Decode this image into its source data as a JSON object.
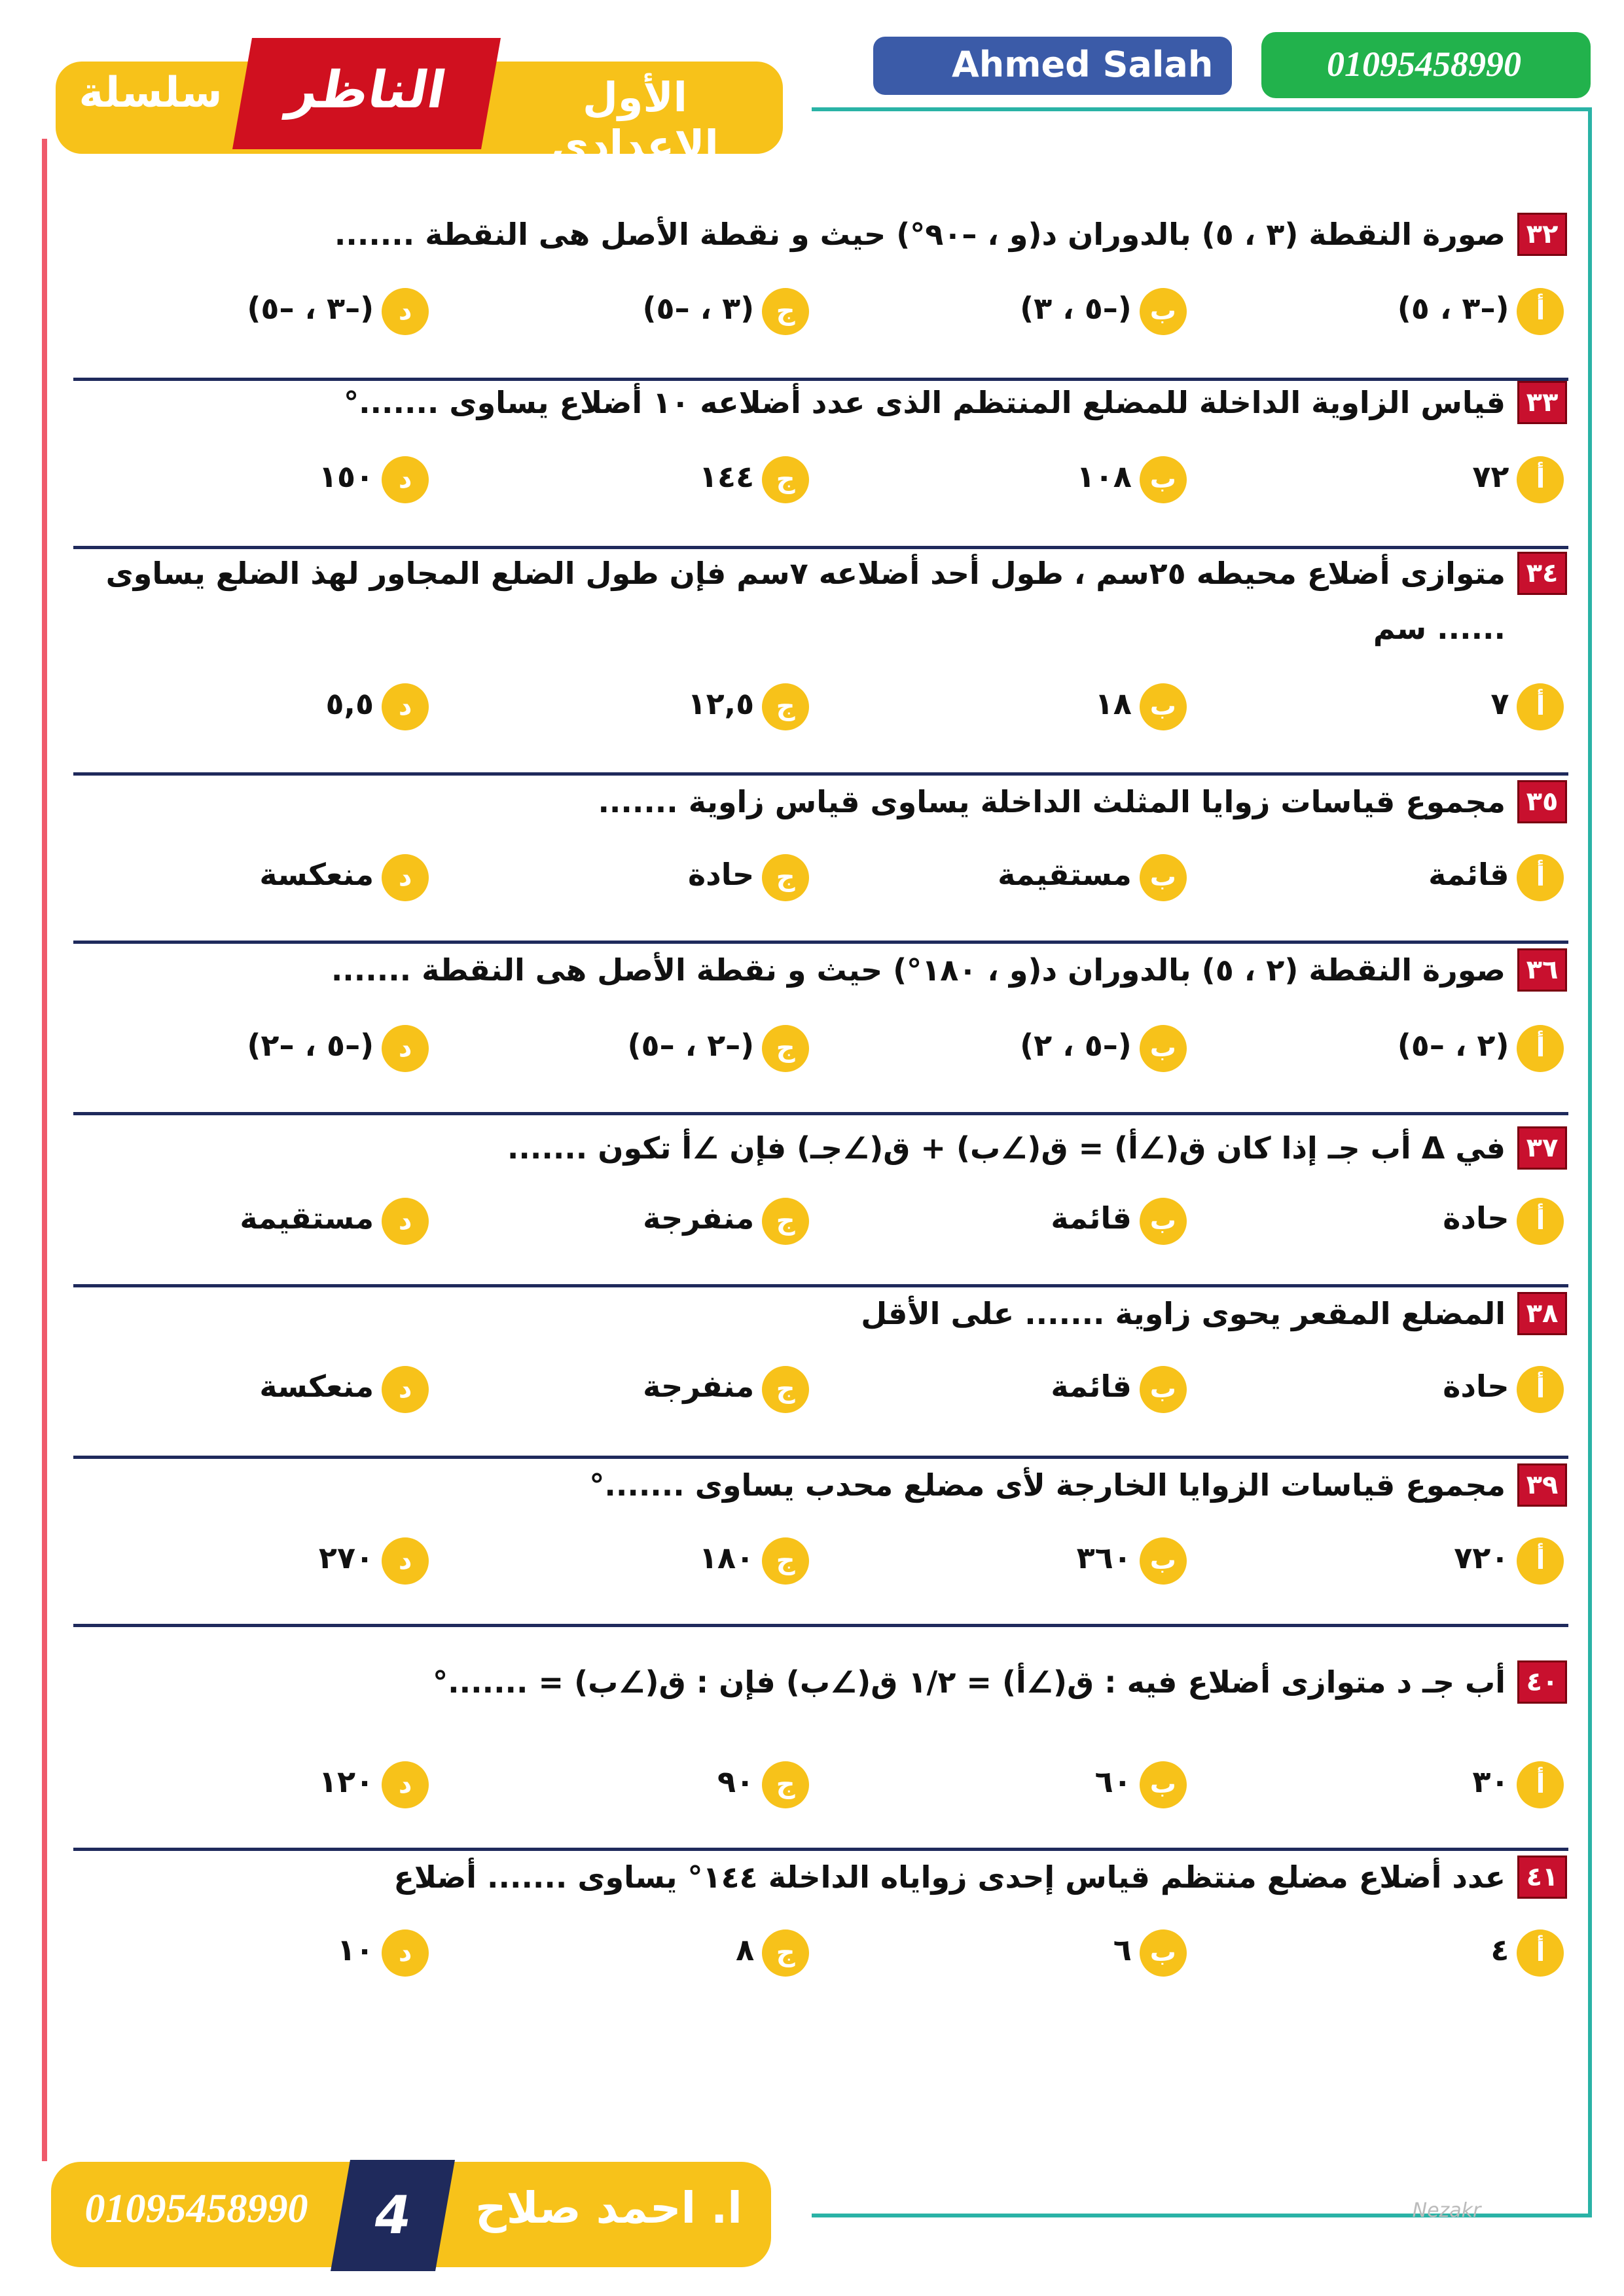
{
  "header": {
    "series_label": "سلسلة",
    "brand": "الناظر",
    "grade": "الأول الإعدادى",
    "facebook": "Ahmed Salah",
    "whatsapp": "01095458990"
  },
  "questions": [
    {
      "number": "٣٢",
      "text": "صورة النقطة (٣ ، ٥) بالدوران  د(و ، –٩٠°) حيث و نقطة الأصل هى النقطة .......",
      "options": [
        {
          "letter": "أ",
          "text": "(–٣ ، ٥)"
        },
        {
          "letter": "ب",
          "text": "(–٥ ، ٣)"
        },
        {
          "letter": "ج",
          "text": "(٣ ، –٥)"
        },
        {
          "letter": "د",
          "text": "(–٣ ، –٥)"
        }
      ]
    },
    {
      "number": "٣٣",
      "text": "قياس الزاوية الداخلة للمضلع المنتظم الذى عدد أضلاعه ١٠ أضلاع يساوى .......°",
      "options": [
        {
          "letter": "أ",
          "text": "٧٢"
        },
        {
          "letter": "ب",
          "text": "١٠٨"
        },
        {
          "letter": "ج",
          "text": "١٤٤"
        },
        {
          "letter": "د",
          "text": "١٥٠"
        }
      ]
    },
    {
      "number": "٣٤",
      "text": "متوازى أضلاع محيطه ٢٥سم ، طول أحد أضلاعه ٧سم فإن طول الضلع المجاور لهذ الضلع يساوى ...... سم",
      "options": [
        {
          "letter": "أ",
          "text": "٧"
        },
        {
          "letter": "ب",
          "text": "١٨"
        },
        {
          "letter": "ج",
          "text": "١٢,٥"
        },
        {
          "letter": "د",
          "text": "٥,٥"
        }
      ]
    },
    {
      "number": "٣٥",
      "text": "مجموع قياسات زوايا المثلث الداخلة يساوى قياس زاوية .......",
      "options": [
        {
          "letter": "أ",
          "text": "قائمة"
        },
        {
          "letter": "ب",
          "text": "مستقيمة"
        },
        {
          "letter": "ج",
          "text": "حادة"
        },
        {
          "letter": "د",
          "text": "منعكسة"
        }
      ]
    },
    {
      "number": "٣٦",
      "text": "صورة النقطة (٢ ، ٥) بالدوران  د(و ، ١٨٠°) حيث و نقطة الأصل هى النقطة .......",
      "options": [
        {
          "letter": "أ",
          "text": "(٢ ، –٥)"
        },
        {
          "letter": "ب",
          "text": "(–٥ ، ٢)"
        },
        {
          "letter": "ج",
          "text": "(–٢ ، –٥)"
        },
        {
          "letter": "د",
          "text": "(–٥ ، –٢)"
        }
      ]
    },
    {
      "number": "٣٧",
      "text": "في Δ أب جـ إذا كان ق(∠أ) = ق(∠ب) + ق(∠جـ)  فإن ∠أ تكون .......",
      "options": [
        {
          "letter": "أ",
          "text": "حادة"
        },
        {
          "letter": "ب",
          "text": "قائمة"
        },
        {
          "letter": "ج",
          "text": "منفرجة"
        },
        {
          "letter": "د",
          "text": "مستقيمة"
        }
      ]
    },
    {
      "number": "٣٨",
      "text": "المضلع المقعر يحوى زاوية ....... على الأقل",
      "options": [
        {
          "letter": "أ",
          "text": "حادة"
        },
        {
          "letter": "ب",
          "text": "قائمة"
        },
        {
          "letter": "ج",
          "text": "منفرجة"
        },
        {
          "letter": "د",
          "text": "منعكسة"
        }
      ]
    },
    {
      "number": "٣٩",
      "text": "مجموع قياسات الزوايا الخارجة لأى مضلع محدب يساوى .......°",
      "options": [
        {
          "letter": "أ",
          "text": "٧٢٠"
        },
        {
          "letter": "ب",
          "text": "٣٦٠"
        },
        {
          "letter": "ج",
          "text": "١٨٠"
        },
        {
          "letter": "د",
          "text": "٢٧٠"
        }
      ]
    },
    {
      "number": "٤٠",
      "text": "أب جـ د متوازى أضلاع فيه : ق(∠أ) = ١/٢ ق(∠ب) فإن : ق(∠ب) = .......°",
      "options": [
        {
          "letter": "أ",
          "text": "٣٠"
        },
        {
          "letter": "ب",
          "text": "٦٠"
        },
        {
          "letter": "ج",
          "text": "٩٠"
        },
        {
          "letter": "د",
          "text": "١٢٠"
        }
      ]
    },
    {
      "number": "٤١",
      "text": "عدد أضلاع مضلع منتظم قياس إحدى زواياه الداخلة ١٤٤° يساوى ....... أضلاع",
      "options": [
        {
          "letter": "أ",
          "text": "٤"
        },
        {
          "letter": "ب",
          "text": "٦"
        },
        {
          "letter": "ج",
          "text": "٨"
        },
        {
          "letter": "د",
          "text": "١٠"
        }
      ]
    }
  ],
  "footer": {
    "teacher": "ا. احمد صلاح",
    "page": "4",
    "phone": "01095458990",
    "logo": "Nezakr"
  }
}
